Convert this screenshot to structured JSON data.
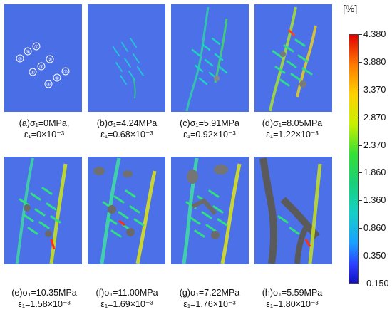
{
  "unit_label": "[%]",
  "colorbar_ticks": [
    "4.380",
    "3.880",
    "3.370",
    "2.870",
    "2.370",
    "1.860",
    "1.360",
    "0.860",
    "0.350",
    "-0.150"
  ],
  "panels": [
    {
      "line1": "(a)σ₁=0MPa,",
      "line2": "ε₁=0×10⁻³",
      "labels": [
        "⑦",
        "④",
        "①",
        "⑧",
        "⑤",
        "②",
        "⑨",
        "⑥",
        "③"
      ]
    },
    {
      "line1": "(b)σ₁=4.24MPa",
      "line2": "ε₁=0.68×10⁻³"
    },
    {
      "line1": "(c)σ₁=5.91MPa",
      "line2": "ε₁=0.92×10⁻³"
    },
    {
      "line1": "(d)σ₁=8.05MPa",
      "line2": "ε₁=1.22×10⁻³"
    },
    {
      "line1": "(e)σ₁=10.35MPa",
      "line2": "ε₁=1.58×10⁻³"
    },
    {
      "line1": "(f)σ₁=11.00MPa",
      "line2": "ε₁=1.69×10⁻³"
    },
    {
      "line1": "(g)σ₁=7.22MPa",
      "line2": "ε₁=1.76×10⁻³"
    },
    {
      "line1": "(h)σ₁=5.59MPa",
      "line2": "ε₁=1.80×10⁻³"
    }
  ]
}
